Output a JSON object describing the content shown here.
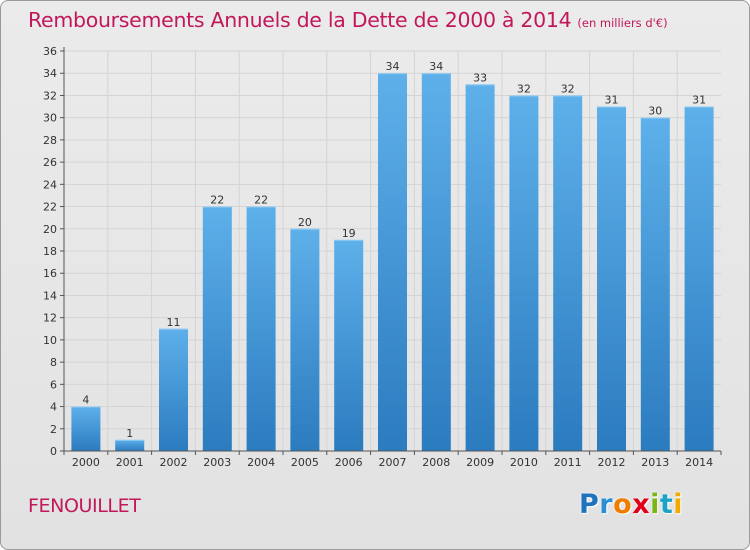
{
  "header": {
    "title": "Remboursements Annuels de la Dette de 2000 à 2014",
    "unit": "(en milliers d'€)"
  },
  "footer": {
    "commune": "FENOUILLET",
    "logo": "Proxiti"
  },
  "colors": {
    "title": "#c2185b",
    "bar_top": "#5eb0ea",
    "bar_bottom": "#2b7bbf",
    "background": "#e6e6e6",
    "grid": "#d4d4d4"
  },
  "chart_data": {
    "type": "bar",
    "title": "Remboursements Annuels de la Dette de 2000 à 2014",
    "ylabel": "(en milliers d'€)",
    "xlabel": "",
    "categories": [
      "2000",
      "2001",
      "2002",
      "2003",
      "2004",
      "2005",
      "2006",
      "2007",
      "2008",
      "2009",
      "2010",
      "2011",
      "2012",
      "2013",
      "2014"
    ],
    "values": [
      4,
      1,
      11,
      22,
      22,
      20,
      19,
      34,
      34,
      33,
      32,
      32,
      31,
      30,
      31
    ],
    "ylim": [
      0,
      36
    ],
    "yticks": [
      0,
      2,
      4,
      6,
      8,
      10,
      12,
      14,
      16,
      18,
      20,
      22,
      24,
      26,
      28,
      30,
      32,
      34,
      36
    ],
    "grid": true,
    "data_labels": true
  }
}
